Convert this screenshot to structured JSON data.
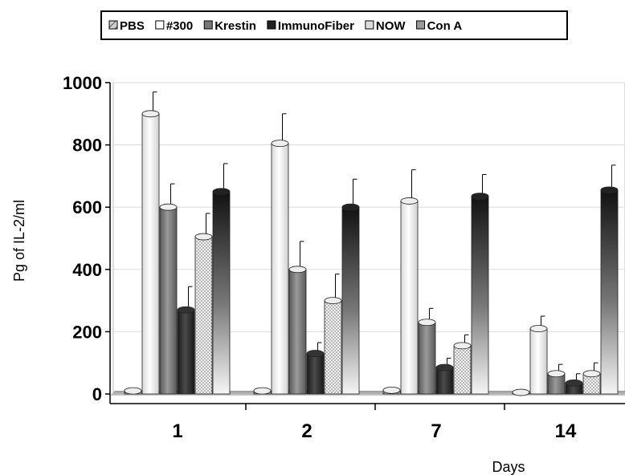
{
  "chart_data": {
    "type": "bar",
    "title": "",
    "xlabel": "Days",
    "ylabel": "Pg of IL-2/ml",
    "categories": [
      "1",
      "2",
      "7",
      "14"
    ],
    "ylim": [
      0,
      1000
    ],
    "yticks": [
      0,
      200,
      400,
      600,
      800,
      1000
    ],
    "grid": true,
    "legend_position": "top",
    "series": [
      {
        "name": "PBS",
        "values": [
          10,
          10,
          12,
          5
        ],
        "errors": [
          0,
          0,
          0,
          0
        ],
        "color": "#b0b0b0"
      },
      {
        "name": "#300",
        "values": [
          900,
          805,
          620,
          210
        ],
        "errors": [
          70,
          95,
          100,
          40
        ],
        "color": "#ffffff"
      },
      {
        "name": "Krestin",
        "values": [
          600,
          400,
          230,
          65
        ],
        "errors": [
          75,
          90,
          45,
          30
        ],
        "color": "#777777"
      },
      {
        "name": "ImmunoFiber",
        "values": [
          270,
          130,
          85,
          35
        ],
        "errors": [
          75,
          35,
          30,
          30
        ],
        "color": "#2b2b2b"
      },
      {
        "name": "NOW",
        "values": [
          505,
          300,
          155,
          65
        ],
        "errors": [
          75,
          85,
          35,
          35
        ],
        "color": "#dddddd"
      },
      {
        "name": "Con A",
        "values": [
          650,
          600,
          635,
          655
        ],
        "errors": [
          90,
          90,
          70,
          80
        ],
        "color": "#111111"
      }
    ]
  }
}
